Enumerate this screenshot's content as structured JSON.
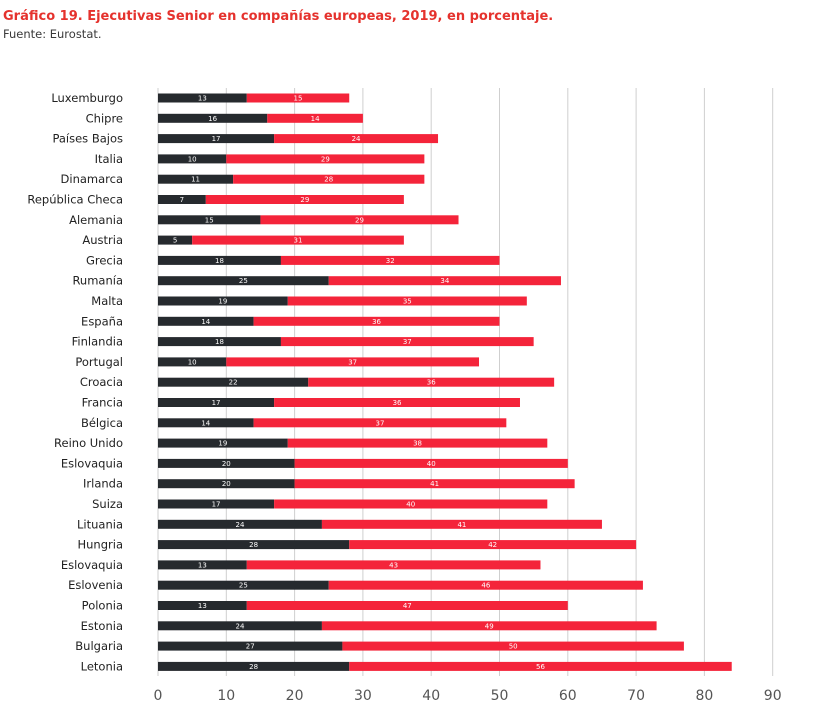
{
  "title": "Gráfico 19. Ejecutivas Senior en compañías europeas, 2019, en porcentaje.",
  "source": "Fuente: Eurostat.",
  "chart_data": {
    "type": "bar",
    "orientation": "horizontal",
    "stacked": true,
    "categories": [
      "Luxemburgo",
      "Chipre",
      "Países Bajos",
      "Italia",
      "Dinamarca",
      "República Checa",
      "Alemania",
      "Austria",
      "Grecia",
      "Rumanía",
      "Malta",
      "España",
      "Finlandia",
      "Portugal",
      "Croacia",
      "Francia",
      "Bélgica",
      "Reino Unido",
      "Eslovaquia",
      "Irlanda",
      "Suiza",
      "Lituania",
      "Hungria",
      "Eslovaquia",
      "Eslovenia",
      "Polonia",
      "Estonia",
      "Bulgaria",
      "Letonia"
    ],
    "series": [
      {
        "values": [
          13,
          16,
          17,
          10,
          11,
          7,
          15,
          5,
          18,
          25,
          19,
          14,
          18,
          10,
          22,
          17,
          14,
          19,
          20,
          20,
          17,
          24,
          28,
          13,
          25,
          13,
          24,
          27,
          28
        ]
      },
      {
        "values": [
          15,
          14,
          24,
          29,
          28,
          29,
          29,
          31,
          32,
          34,
          35,
          36,
          37,
          37,
          36,
          36,
          37,
          38,
          40,
          41,
          40,
          41,
          42,
          43,
          46,
          47,
          49,
          50,
          56
        ]
      }
    ],
    "xlim": [
      0,
      90
    ],
    "xticks": [
      0,
      10,
      20,
      30,
      40,
      50,
      60,
      70,
      80,
      90
    ],
    "grid": "vertical",
    "colors": [
      "#262a2e",
      "#f4243a"
    ],
    "title": "Gráfico 19. Ejecutivas Senior en compañías europeas, 2019, en porcentaje."
  }
}
